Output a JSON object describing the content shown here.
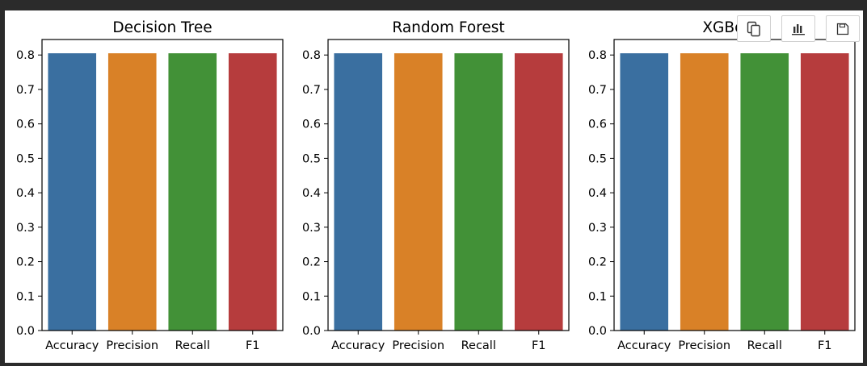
{
  "colors": {
    "accuracy": "#3a6fa0",
    "precision": "#d98127",
    "recall": "#429137",
    "f1": "#b63c3d"
  },
  "toolbar": {
    "icons": [
      "copy-icon",
      "chart-icon",
      "save-icon"
    ]
  },
  "chart_data": [
    {
      "type": "bar",
      "title": "Decision Tree",
      "categories": [
        "Accuracy",
        "Precision",
        "Recall",
        "F1"
      ],
      "values": [
        0.805,
        0.805,
        0.805,
        0.805
      ],
      "ylim": [
        0,
        0.845
      ],
      "yticks": [
        "0.0",
        "0.1",
        "0.2",
        "0.3",
        "0.4",
        "0.5",
        "0.6",
        "0.7",
        "0.8"
      ],
      "grid": false
    },
    {
      "type": "bar",
      "title": "Random Forest",
      "categories": [
        "Accuracy",
        "Precision",
        "Recall",
        "F1"
      ],
      "values": [
        0.805,
        0.805,
        0.805,
        0.805
      ],
      "ylim": [
        0,
        0.845
      ],
      "yticks": [
        "0.0",
        "0.1",
        "0.2",
        "0.3",
        "0.4",
        "0.5",
        "0.6",
        "0.7",
        "0.8"
      ],
      "grid": false
    },
    {
      "type": "bar",
      "title": "XGBoost",
      "categories": [
        "Accuracy",
        "Precision",
        "Recall",
        "F1"
      ],
      "values": [
        0.805,
        0.805,
        0.805,
        0.805
      ],
      "ylim": [
        0,
        0.845
      ],
      "yticks": [
        "0.0",
        "0.1",
        "0.2",
        "0.3",
        "0.4",
        "0.5",
        "0.6",
        "0.7",
        "0.8"
      ],
      "grid": false
    }
  ]
}
